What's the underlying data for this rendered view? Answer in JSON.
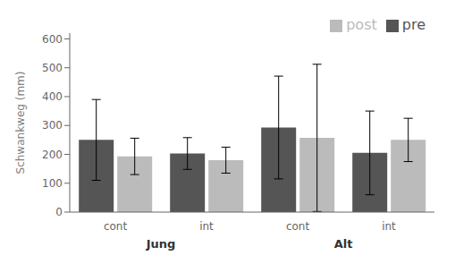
{
  "chart_data": {
    "type": "bar",
    "ylabel": "Schwankweg (mm)",
    "categories": [
      "cont",
      "int",
      "cont",
      "int"
    ],
    "group_labels": [
      "Jung",
      "Alt"
    ],
    "series": [
      {
        "name": "pre",
        "color": "#555555",
        "values": [
          250,
          203,
          293,
          205
        ],
        "errors": [
          140,
          55,
          178,
          145
        ]
      },
      {
        "name": "post",
        "color": "#bbbbbb",
        "values": [
          193,
          180,
          257,
          250
        ],
        "errors": [
          63,
          45,
          255,
          75
        ]
      }
    ],
    "ylim": [
      0,
      620
    ],
    "yticks": [
      0,
      100,
      200,
      300,
      400,
      500,
      600
    ],
    "grid": false,
    "legend": "upper right"
  }
}
